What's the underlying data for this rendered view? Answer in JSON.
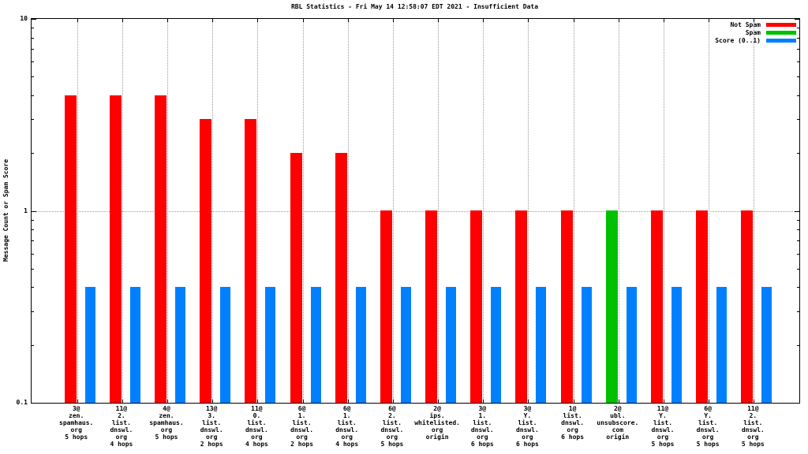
{
  "title": "RBL Statistics - Fri May 14 12:58:07 EDT 2021 - Insufficient Data",
  "y_axis": {
    "label": "Message Count or Spam Score",
    "ticks": [
      {
        "label": "10",
        "value": 10
      },
      {
        "label": "1",
        "value": 1
      },
      {
        "label": "0.1",
        "value": 0.1
      }
    ]
  },
  "chart_data": {
    "type": "bar",
    "y_scale": "log",
    "ylim": [
      0.1,
      10
    ],
    "grid": true,
    "legend_position": "top-right",
    "title": "RBL Statistics - Fri May 14 12:58:07 EDT 2021 - Insufficient Data",
    "ylabel": "Message Count or Spam Score",
    "xlabel": "",
    "categories": [
      [
        "3@",
        "zen.",
        "spamhaus.",
        "org",
        "5 hops"
      ],
      [
        "11@",
        "2.",
        "list.",
        "dnswl.",
        "org",
        "4 hops"
      ],
      [
        "4@",
        "zen.",
        "spamhaus.",
        "org",
        "5 hops"
      ],
      [
        "13@",
        "3.",
        "list.",
        "dnswl.",
        "org",
        "2 hops"
      ],
      [
        "11@",
        "0.",
        "list.",
        "dnswl.",
        "org",
        "4 hops"
      ],
      [
        "6@",
        "1.",
        "list.",
        "dnswl.",
        "org",
        "2 hops"
      ],
      [
        "6@",
        "1.",
        "list.",
        "dnswl.",
        "org",
        "4 hops"
      ],
      [
        "6@",
        "2.",
        "list.",
        "dnswl.",
        "org",
        "5 hops"
      ],
      [
        "2@",
        "ips.",
        "whitelisted.",
        "org",
        "origin"
      ],
      [
        "3@",
        "1.",
        "list.",
        "dnswl.",
        "org",
        "6 hops"
      ],
      [
        "3@",
        "Y.",
        "list.",
        "dnswl.",
        "org",
        "6 hops"
      ],
      [
        "1@",
        "list.",
        "dnswl.",
        "org",
        "6 hops"
      ],
      [
        "2@",
        "ubl.",
        "unsubscore.",
        "com",
        "origin"
      ],
      [
        "11@",
        "Y.",
        "list.",
        "dnswl.",
        "org",
        "5 hops"
      ],
      [
        "6@",
        "Y.",
        "list.",
        "dnswl.",
        "org",
        "5 hops"
      ],
      [
        "11@",
        "2.",
        "list.",
        "dnswl.",
        "org",
        "5 hops"
      ]
    ],
    "series": [
      {
        "name": "Not Spam",
        "color": "#ff0000",
        "values": [
          4,
          4,
          4,
          3,
          3,
          2,
          2,
          1,
          1,
          1,
          1,
          1,
          null,
          1,
          1,
          1
        ]
      },
      {
        "name": "Spam",
        "color": "#00c000",
        "values": [
          null,
          null,
          null,
          null,
          null,
          null,
          null,
          null,
          null,
          null,
          null,
          null,
          1,
          null,
          null,
          null
        ]
      },
      {
        "name": "Score (0..1)",
        "color": "#0080ff",
        "values": [
          0.4,
          0.4,
          0.4,
          0.4,
          0.4,
          0.4,
          0.4,
          0.4,
          0.4,
          0.4,
          0.4,
          0.4,
          0.4,
          0.4,
          0.4,
          0.4
        ]
      }
    ]
  }
}
